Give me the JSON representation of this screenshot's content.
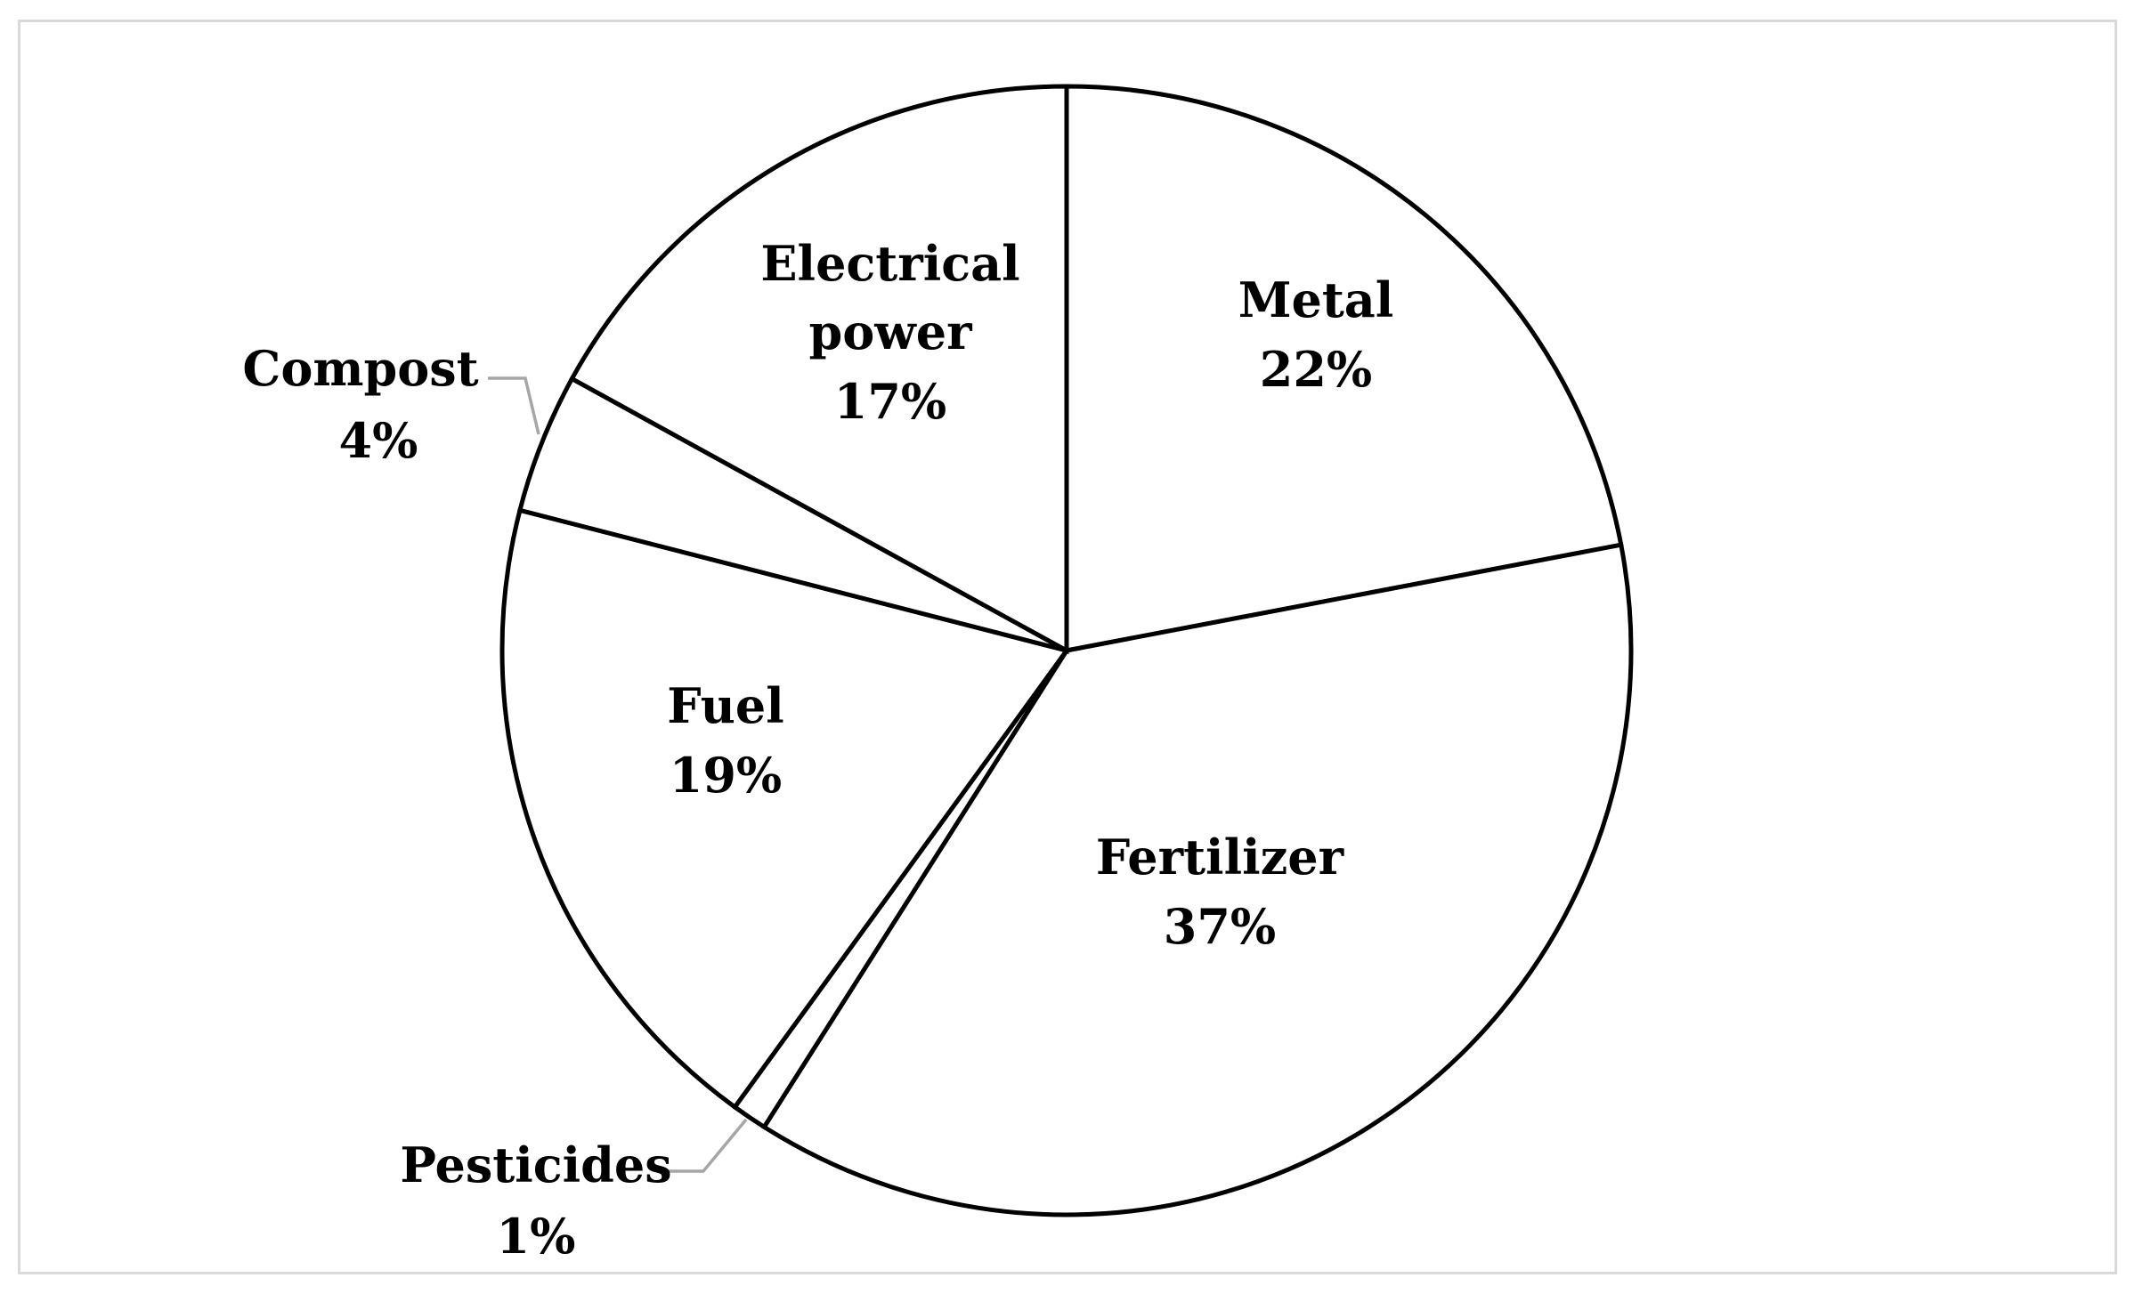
{
  "chart_data": {
    "type": "pie",
    "title": "",
    "slices": [
      {
        "label": "Metal",
        "value": 22,
        "value_label": "22%"
      },
      {
        "label": "Fertilizer",
        "value": 37,
        "value_label": "37%"
      },
      {
        "label": "Pesticides",
        "value": 1,
        "value_label": "1%"
      },
      {
        "label": "Fuel",
        "value": 19,
        "value_label": "19%"
      },
      {
        "label": "Compost",
        "value": 4,
        "value_label": "4%"
      },
      {
        "label": "Electrical power",
        "value": 17,
        "value_label": "17%"
      }
    ],
    "start_angle": "12 o'clock",
    "direction": "clockwise",
    "fill_color": "#ffffff",
    "edge_color": "#000000",
    "leader_color": "#a6a6a6",
    "legend": "none"
  }
}
